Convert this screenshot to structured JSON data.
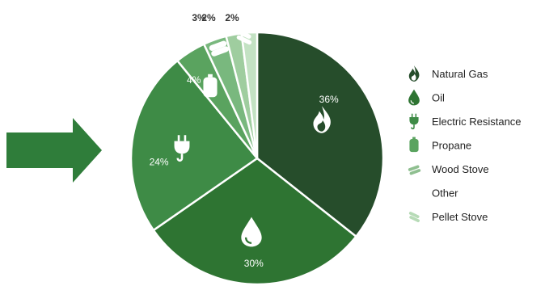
{
  "chart_data": {
    "type": "pie",
    "title": "",
    "legend_position": "right",
    "slices": [
      {
        "label": "Natural Gas",
        "value": 36,
        "display": "36%",
        "color": "#264d2b",
        "icon": "flame-icon"
      },
      {
        "label": "Oil",
        "value": 30,
        "display": "30%",
        "color": "#2e7432",
        "icon": "oil-drop-icon"
      },
      {
        "label": "Electric Resistance",
        "value": 24,
        "display": "24%",
        "color": "#3e8b46",
        "icon": "electric-plug-icon"
      },
      {
        "label": "Propane",
        "value": 4,
        "display": "4%",
        "color": "#5aa35f",
        "icon": "propane-tank-icon"
      },
      {
        "label": "Wood Stove",
        "value": 3,
        "display": "3%",
        "color": "#79b87e",
        "icon": "firewood-icon"
      },
      {
        "label": "Other",
        "value": 2,
        "display": "2%",
        "color": "#9fcd9f",
        "icon": ""
      },
      {
        "label": "Pellet Stove",
        "value": 2,
        "display": "2%",
        "color": "#c3e2c3",
        "icon": "pellet-icon"
      }
    ]
  },
  "legend": {
    "items": [
      {
        "label": "Natural Gas",
        "icon": "flame-icon",
        "color": "#264d2b"
      },
      {
        "label": "Oil",
        "icon": "oil-drop-icon",
        "color": "#2e7432"
      },
      {
        "label": "Electric Resistance",
        "icon": "electric-plug-icon",
        "color": "#3e8b46"
      },
      {
        "label": "Propane",
        "icon": "propane-tank-icon",
        "color": "#5aa35f"
      },
      {
        "label": "Wood Stove",
        "icon": "firewood-icon",
        "color": "#8fbf90"
      },
      {
        "label": "Other",
        "icon": "",
        "color": "#ffffff"
      },
      {
        "label": "Pellet Stove",
        "icon": "pellet-icon",
        "color": "#b7dbb7"
      }
    ]
  },
  "arrow": {
    "icon": "right-arrow-icon",
    "color": "#2f7d3a"
  }
}
